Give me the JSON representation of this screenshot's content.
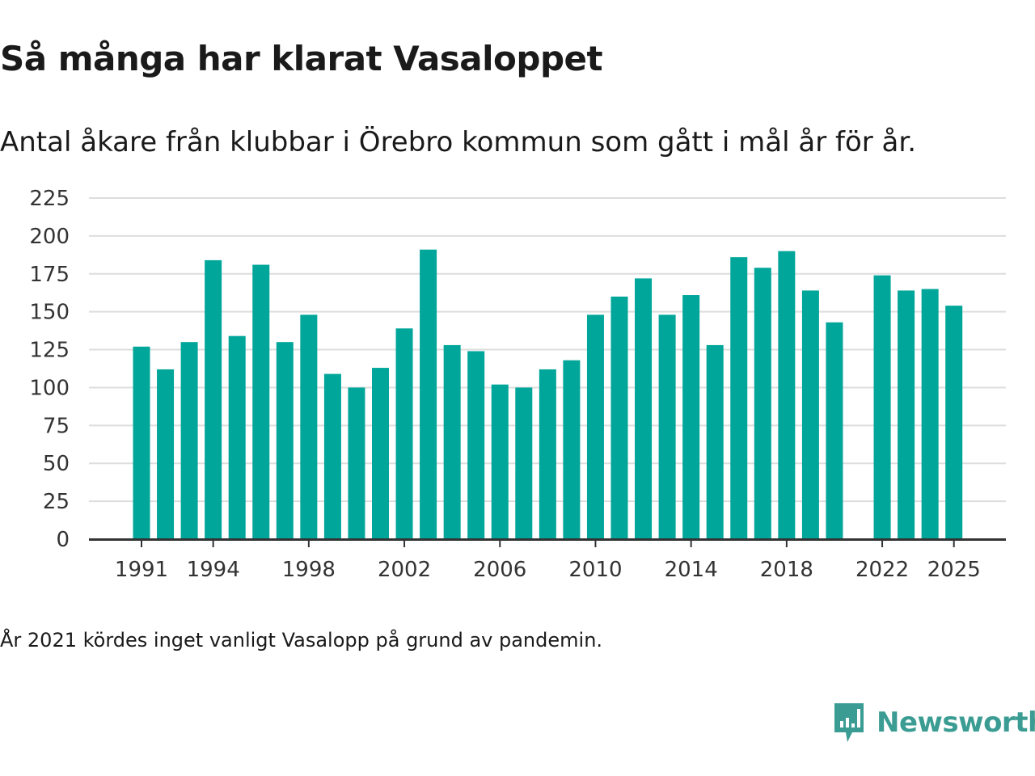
{
  "header": {
    "title": "Så många har klarat Vasaloppet",
    "subtitle": "Antal åkare från klubbar i Örebro kommun som gått i mål år för år."
  },
  "footer": {
    "note": "År 2021 kördes inget vanligt Vasalopp på grund av pandemin.",
    "brand": "Newsworthy",
    "brand_icon": "newsworthy-logo-icon"
  },
  "colors": {
    "bar": "#00a69a",
    "grid": "#dddddd",
    "axis": "#333333",
    "brand": "#3a9c93"
  },
  "chart_data": {
    "type": "bar",
    "title": "Så många har klarat Vasaloppet",
    "xlabel": "",
    "ylabel": "",
    "ylim": [
      0,
      225
    ],
    "yticks": [
      0,
      25,
      50,
      75,
      100,
      125,
      150,
      175,
      200,
      225
    ],
    "xtick_labels": [
      "1991",
      "1994",
      "1998",
      "2002",
      "2006",
      "2010",
      "2014",
      "2018",
      "2022",
      "2025"
    ],
    "categories": [
      1991,
      1992,
      1993,
      1994,
      1995,
      1996,
      1997,
      1998,
      1999,
      2000,
      2001,
      2002,
      2003,
      2004,
      2005,
      2006,
      2007,
      2008,
      2009,
      2010,
      2011,
      2012,
      2013,
      2014,
      2015,
      2016,
      2017,
      2018,
      2019,
      2020,
      2021,
      2022,
      2023,
      2024,
      2025
    ],
    "values": [
      127,
      112,
      130,
      184,
      134,
      181,
      130,
      148,
      109,
      100,
      113,
      139,
      191,
      128,
      124,
      102,
      100,
      112,
      118,
      148,
      160,
      172,
      148,
      161,
      128,
      186,
      179,
      190,
      164,
      143,
      null,
      174,
      164,
      165,
      154
    ]
  }
}
